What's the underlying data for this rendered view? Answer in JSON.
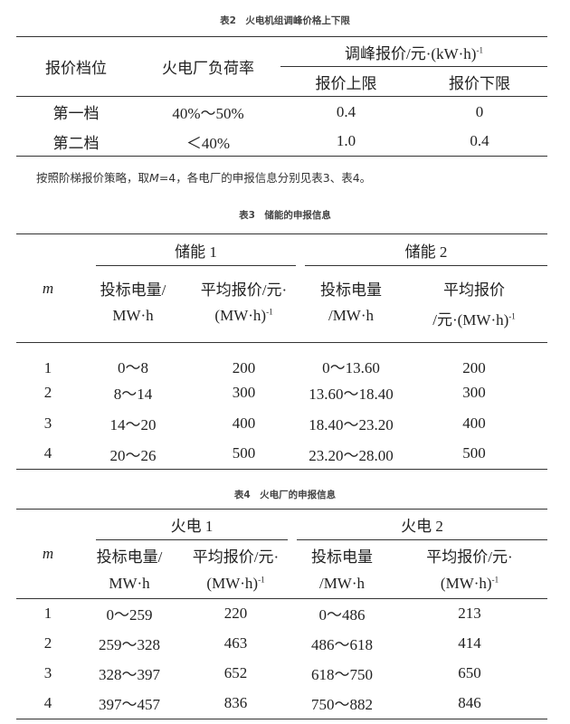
{
  "table2": {
    "caption": "表2　火电机组调峰价格上下限",
    "headers": {
      "c1": "报价档位",
      "c2": "火电厂负荷率",
      "group": "调峰报价/元·(kW·h)",
      "group_sup": "-1",
      "c3": "报价上限",
      "c4": "报价下限"
    },
    "rows": [
      [
        "第一档",
        "40%～50%",
        "0.4",
        "0"
      ],
      [
        "第二档",
        "＜40%",
        "1.0",
        "0.4"
      ]
    ]
  },
  "paragraph": {
    "before": "按照阶梯报价策略，取",
    "var": "M",
    "after": "=4，各电厂的申报信息分别见表3、表4。"
  },
  "table3": {
    "caption": "表3　储能的申报信息",
    "headers": {
      "m": "m",
      "g1": "储能 1",
      "g2": "储能 2",
      "c1a": "投标电量/",
      "c1b": "MW·h",
      "c2a": "平均报价/元·",
      "c2b": "(MW·h)",
      "c3a": "投标电量",
      "c3b": "/MW·h",
      "c4a": "平均报价",
      "c4b": "/元·(MW·h)",
      "sup": "-1"
    },
    "rows": [
      [
        "1",
        "0～8",
        "200",
        "0～13.60",
        "200"
      ],
      [
        "2",
        "8～14",
        "300",
        "13.60～18.40",
        "300"
      ],
      [
        "3",
        "14～20",
        "400",
        "18.40～23.20",
        "400"
      ],
      [
        "4",
        "20～26",
        "500",
        "23.20～28.00",
        "500"
      ]
    ]
  },
  "table4": {
    "caption": "表4　火电厂的申报信息",
    "headers": {
      "m": "m",
      "g1": "火电 1",
      "g2": "火电 2",
      "c1a": "投标电量/",
      "c1b": "MW·h",
      "c2a": "平均报价/元·",
      "c2b": "(MW·h)",
      "c3a": "投标电量",
      "c3b": "/MW·h",
      "c4a": "平均报价/元·",
      "c4b": "(MW·h)",
      "sup": "-1"
    },
    "rows": [
      [
        "1",
        "0～259",
        "220",
        "0～486",
        "213"
      ],
      [
        "2",
        "259～328",
        "463",
        "486～618",
        "414"
      ],
      [
        "3",
        "328～397",
        "652",
        "618～750",
        "650"
      ],
      [
        "4",
        "397～457",
        "836",
        "750～882",
        "846"
      ]
    ]
  }
}
